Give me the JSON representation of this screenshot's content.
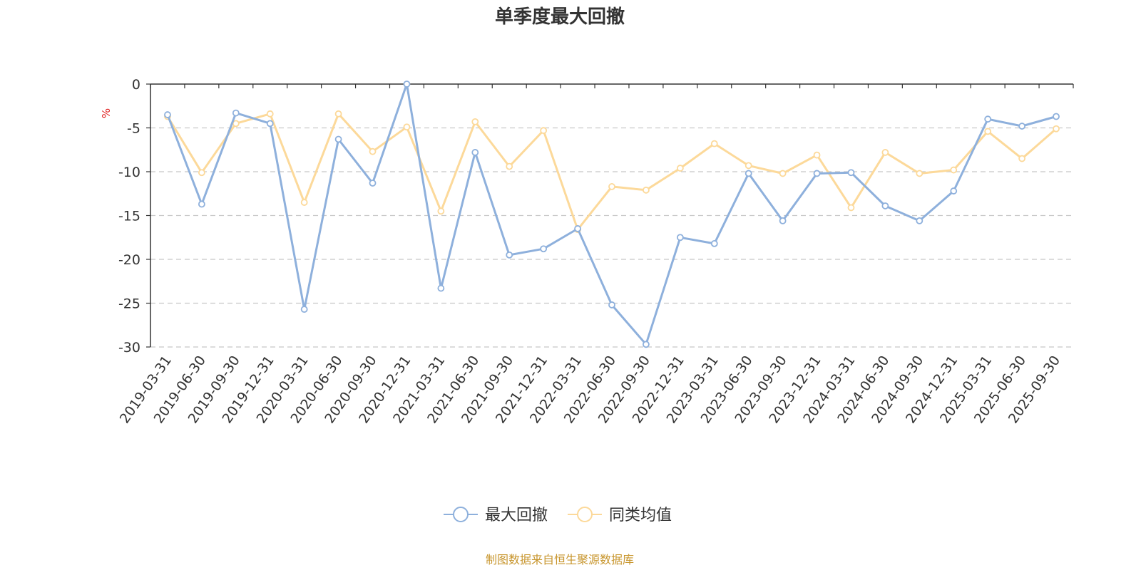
{
  "chart_data": {
    "type": "line",
    "title": "单季度最大回撤",
    "ylabel": "%",
    "ylim": [
      -30,
      0
    ],
    "yticks": [
      0,
      -5,
      -10,
      -15,
      -20,
      -25,
      -30
    ],
    "grid": true,
    "legend_position": "bottom",
    "categories": [
      "2019-03-31",
      "2019-06-30",
      "2019-09-30",
      "2019-12-31",
      "2020-03-31",
      "2020-06-30",
      "2020-09-30",
      "2020-12-31",
      "2021-03-31",
      "2021-06-30",
      "2021-09-30",
      "2021-12-31",
      "2022-03-31",
      "2022-06-30",
      "2022-09-30",
      "2022-12-31",
      "2023-03-31",
      "2023-06-30",
      "2023-09-30",
      "2023-12-31",
      "2024-03-31",
      "2024-06-30",
      "2024-09-30",
      "2024-12-31",
      "2025-03-31",
      "2025-06-30",
      "2025-09-30"
    ],
    "series": [
      {
        "name": "最大回撤",
        "color": "#8eb0dc",
        "values": [
          -3.5,
          -13.7,
          -3.3,
          -4.5,
          -25.7,
          -6.3,
          -11.3,
          0.0,
          -23.3,
          -7.8,
          -19.5,
          -18.8,
          -16.5,
          -25.2,
          -29.7,
          -17.5,
          -18.2,
          -10.2,
          -15.6,
          -10.2,
          -10.1,
          -13.9,
          -15.6,
          -12.2,
          -4.0,
          -4.8,
          -3.7
        ]
      },
      {
        "name": "同类均值",
        "color": "#fcd99a",
        "values": [
          -3.7,
          -10.1,
          -4.5,
          -3.4,
          -13.5,
          -3.4,
          -7.7,
          -4.9,
          -14.5,
          -4.3,
          -9.4,
          -5.3,
          -16.6,
          -11.7,
          -12.1,
          -9.6,
          -6.8,
          -9.3,
          -10.2,
          -8.1,
          -14.1,
          -7.8,
          -10.2,
          -9.8,
          -5.4,
          -8.5,
          -5.1
        ]
      }
    ]
  },
  "footer": {
    "source_text": "制图数据来自恒生聚源数据库"
  }
}
